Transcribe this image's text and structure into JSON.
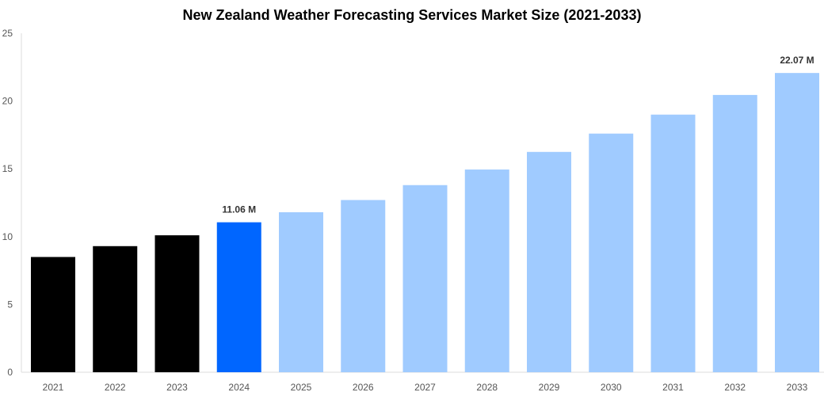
{
  "chart_data": {
    "type": "bar",
    "title": "New Zealand Weather Forecasting Services Market Size (2021-2033)",
    "xlabel": "",
    "ylabel": "",
    "ylim": [
      0,
      25
    ],
    "yticks": [
      "0",
      "5",
      "10",
      "15",
      "20",
      "25"
    ],
    "grid": false,
    "categories": [
      "2021",
      "2022",
      "2023",
      "2024",
      "2025",
      "2026",
      "2027",
      "2028",
      "2029",
      "2030",
      "2031",
      "2032",
      "2033"
    ],
    "values": [
      8.5,
      9.3,
      10.1,
      11.06,
      11.8,
      12.7,
      13.8,
      14.95,
      16.25,
      17.6,
      19.0,
      20.45,
      22.07
    ],
    "data_labels": {
      "3": "11.06 M",
      "12": "22.07 M"
    },
    "colors": {
      "historical": "#000000",
      "base_year": "#0066ff",
      "forecast": "#a0cbff",
      "axis": "#dddddd"
    }
  }
}
